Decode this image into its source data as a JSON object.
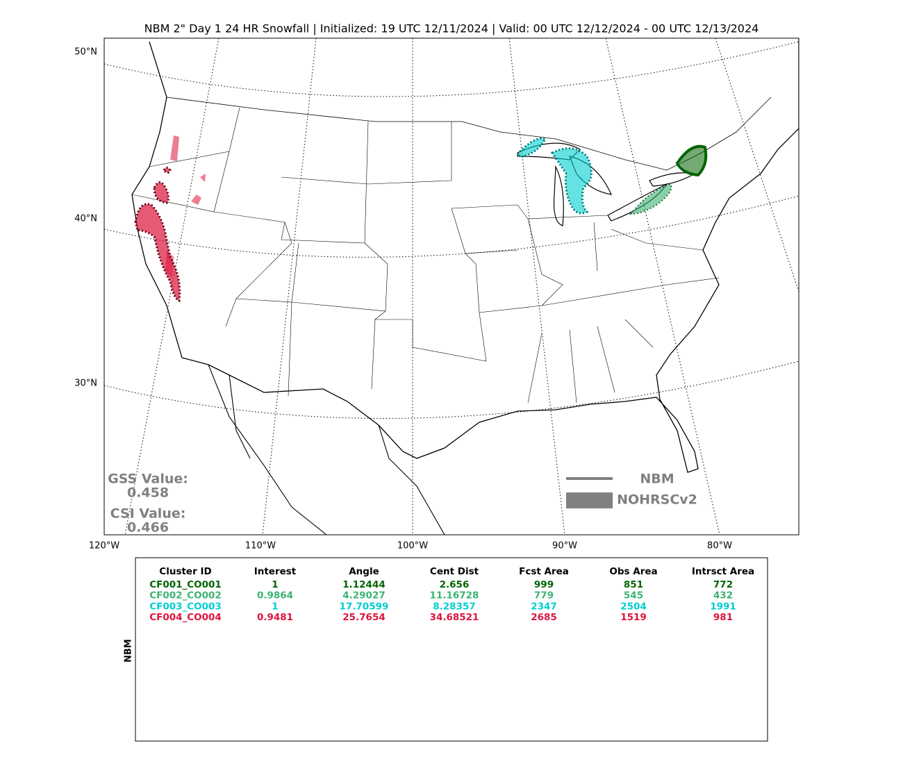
{
  "title": "NBM 2\" Day 1 24 HR Snowfall | Initialized: 19 UTC 12/11/2024 | Valid: 00 UTC 12/12/2024 - 00 UTC 12/13/2024",
  "map": {
    "lat_labels": [
      "50°N",
      "40°N",
      "30°N"
    ],
    "lon_labels": [
      "120°W",
      "110°W",
      "100°W",
      "90°W",
      "80°W"
    ],
    "scores": [
      {
        "label": "GSS Value:",
        "value": 0.458
      },
      {
        "label": "CSI Value:",
        "value": 0.466
      }
    ],
    "legend": [
      "NBM",
      "NOHRSCv2"
    ]
  },
  "table": {
    "side_label": "NBM",
    "header": [
      "Cluster ID",
      "Interest",
      "Angle",
      "Cent Dist",
      "Fcst Area",
      "Obs Area",
      "Intrsct Area"
    ],
    "rows": [
      {
        "color": "#006400",
        "cells": [
          "CF001_CO001",
          1,
          1.12444,
          2.656,
          999,
          851,
          772
        ]
      },
      {
        "color": "#3cb371",
        "cells": [
          "CF002_CO002",
          0.9864,
          4.29027,
          11.16728,
          779,
          545,
          432
        ]
      },
      {
        "color": "#00ced1",
        "cells": [
          "CF003_CO003",
          1,
          17.70599,
          8.28357,
          2347,
          2504,
          1991
        ]
      },
      {
        "color": "#dc143c",
        "cells": [
          "CF004_CO004",
          0.9481,
          25.7654,
          34.68521,
          2685,
          1519,
          981
        ]
      }
    ]
  }
}
